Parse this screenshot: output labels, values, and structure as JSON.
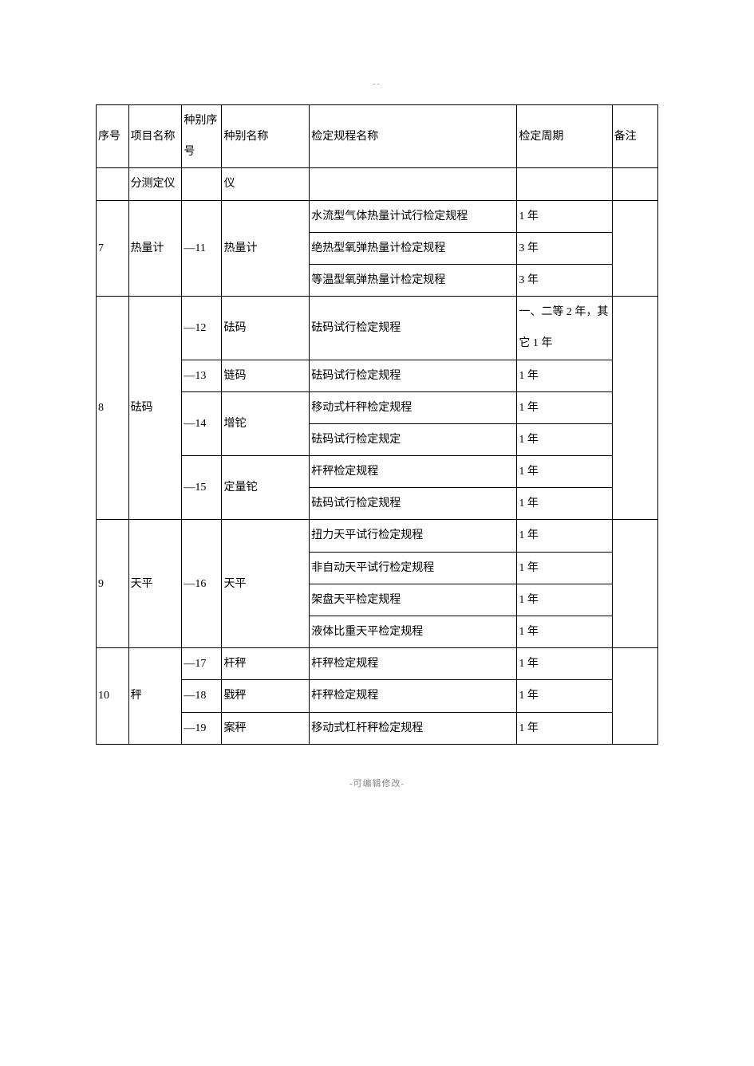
{
  "top_mark": "--",
  "headers": {
    "seq": "序号",
    "proj": "项目名称",
    "tseq": "种别序号",
    "tname": "种别名称",
    "rule": "检定规程名称",
    "period": "检定周期",
    "remark": "备注"
  },
  "rows": {
    "r0_proj": "分测定仪",
    "r0_tname": "仪",
    "r7_seq": "7",
    "r7_proj": "热量计",
    "r7_tseq": "—11",
    "r7_tname": "热量计",
    "r7_rule1": "水流型气体热量计试行检定规程",
    "r7_per1": "1 年",
    "r7_rule2": "绝热型氧弹热量计检定规程",
    "r7_per2": "3 年",
    "r7_rule3": "等温型氧弹热量计检定规程",
    "r7_per3": "3 年",
    "r8_seq": "8",
    "r8_proj": "砝码",
    "r8_tseq1": "—12",
    "r8_tname1": "砝码",
    "r8_rule1": "砝码试行检定规程",
    "r8_per1": "一、二等 2 年，其它 1 年",
    "r8_tseq2": "—13",
    "r8_tname2": "链码",
    "r8_rule2": "砝码试行检定规程",
    "r8_per2": "1 年",
    "r8_tseq3": "—14",
    "r8_tname3": "增铊",
    "r8_rule3a": "移动式杆秤检定规程",
    "r8_per3a": "1 年",
    "r8_rule3b": "砝码试行检定规定",
    "r8_per3b": "1 年",
    "r8_tseq4": "—15",
    "r8_tname4": "定量铊",
    "r8_rule4a": "杆秤检定规程",
    "r8_per4a": "1 年",
    "r8_rule4b": "砝码试行检定规程",
    "r8_per4b": "1 年",
    "r9_seq": "9",
    "r9_proj": "天平",
    "r9_tseq": "—16",
    "r9_tname": "天平",
    "r9_rule1": "扭力天平试行检定规程",
    "r9_per1": "1 年",
    "r9_rule2": "非自动天平试行检定规程",
    "r9_per2": "1 年",
    "r9_rule3": "架盘天平检定规程",
    "r9_per3": "1 年",
    "r9_rule4": "液体比重天平检定规程",
    "r9_per4": "1 年",
    "r10_seq": "10",
    "r10_proj": "秤",
    "r10_tseq1": "—17",
    "r10_tname1": "杆秤",
    "r10_rule1": "杆秤检定规程",
    "r10_per1": "1 年",
    "r10_tseq2": "—18",
    "r10_tname2": "戥秤",
    "r10_rule2": "杆秤检定规程",
    "r10_per2": "1 年",
    "r10_tseq3": "—19",
    "r10_tname3": "案秤",
    "r10_rule3": "移动式杠杆秤检定规程",
    "r10_per3": "1 年"
  },
  "footer": "-可编辑修改-"
}
